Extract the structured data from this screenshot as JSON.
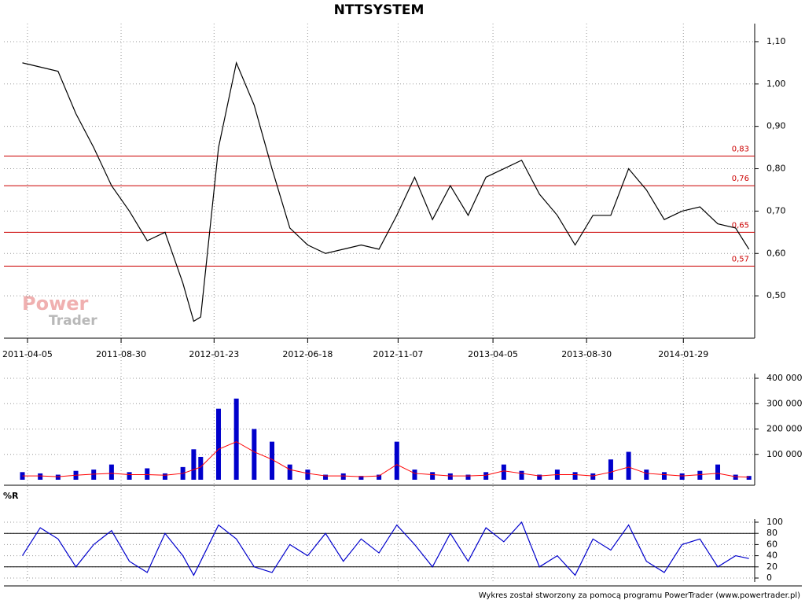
{
  "footer": "Wykres został stworzony za pomocą programu PowerTrader (www.powertrader.pl)",
  "watermark": [
    "Power",
    "Trader"
  ],
  "chart_data": [
    {
      "type": "line",
      "title": "NTTSYSTEM",
      "color": "#000000",
      "grid": true,
      "x": [
        "2011-03-28",
        "2011-04-25",
        "2011-05-23",
        "2011-06-20",
        "2011-07-18",
        "2011-08-15",
        "2011-09-12",
        "2011-10-10",
        "2011-11-07",
        "2011-12-05",
        "2011-12-22",
        "2012-01-02",
        "2012-01-30",
        "2012-02-27",
        "2012-03-26",
        "2012-04-23",
        "2012-05-21",
        "2012-06-18",
        "2012-07-16",
        "2012-08-13",
        "2012-09-10",
        "2012-10-08",
        "2012-11-05",
        "2012-12-03",
        "2012-12-31",
        "2013-01-28",
        "2013-02-25",
        "2013-03-25",
        "2013-04-22",
        "2013-05-20",
        "2013-06-17",
        "2013-07-15",
        "2013-08-12",
        "2013-09-09",
        "2013-10-07",
        "2013-11-04",
        "2013-12-02",
        "2013-12-30",
        "2014-01-27",
        "2014-02-24",
        "2014-03-24",
        "2014-04-21",
        "2014-05-12"
      ],
      "values": [
        1.05,
        1.04,
        1.03,
        0.93,
        0.85,
        0.76,
        0.7,
        0.63,
        0.65,
        0.53,
        0.44,
        0.45,
        0.85,
        1.05,
        0.95,
        0.8,
        0.66,
        0.62,
        0.6,
        0.61,
        0.62,
        0.61,
        0.69,
        0.78,
        0.68,
        0.76,
        0.69,
        0.78,
        0.8,
        0.82,
        0.74,
        0.69,
        0.62,
        0.69,
        0.69,
        0.8,
        0.75,
        0.68,
        0.7,
        0.71,
        0.67,
        0.66,
        0.61
      ],
      "xlim": [
        "2011-02-27",
        "2014-05-21"
      ],
      "xticks": [
        "2011-04-05",
        "2011-08-30",
        "2012-01-23",
        "2012-06-18",
        "2012-11-07",
        "2013-04-05",
        "2013-08-30",
        "2014-01-29"
      ],
      "ylim": [
        0.4,
        1.14
      ],
      "yticks": [
        {
          "value": 0.5,
          "label": "0,50"
        },
        {
          "value": 0.6,
          "label": "0,60"
        },
        {
          "value": 0.7,
          "label": "0,70"
        },
        {
          "value": 0.8,
          "label": "0,80"
        },
        {
          "value": 0.9,
          "label": "0,90"
        },
        {
          "value": 1.0,
          "label": "1,00"
        },
        {
          "value": 1.1,
          "label": "1,10"
        }
      ],
      "levels": [
        {
          "value": 0.83,
          "label": "0,83"
        },
        {
          "value": 0.76,
          "label": "0,76"
        },
        {
          "value": 0.65,
          "label": "0,65"
        },
        {
          "value": 0.57,
          "label": "0,57"
        }
      ],
      "level_color": "#cc0000"
    },
    {
      "type": "bar",
      "grid": true,
      "x": [
        "2011-03-28",
        "2011-04-25",
        "2011-05-23",
        "2011-06-20",
        "2011-07-18",
        "2011-08-15",
        "2011-09-12",
        "2011-10-10",
        "2011-11-07",
        "2011-12-05",
        "2011-12-22",
        "2012-01-02",
        "2012-01-30",
        "2012-02-27",
        "2012-03-26",
        "2012-04-23",
        "2012-05-21",
        "2012-06-18",
        "2012-07-16",
        "2012-08-13",
        "2012-09-10",
        "2012-10-08",
        "2012-11-05",
        "2012-12-03",
        "2012-12-31",
        "2013-01-28",
        "2013-02-25",
        "2013-03-25",
        "2013-04-22",
        "2013-05-20",
        "2013-06-17",
        "2013-07-15",
        "2013-08-12",
        "2013-09-09",
        "2013-10-07",
        "2013-11-04",
        "2013-12-02",
        "2013-12-30",
        "2014-01-27",
        "2014-02-24",
        "2014-03-24",
        "2014-04-21",
        "2014-05-12"
      ],
      "series": [
        {
          "color": "#0000cc",
          "values": [
            30000,
            25000,
            20000,
            35000,
            40000,
            60000,
            30000,
            45000,
            25000,
            50000,
            120000,
            90000,
            280000,
            320000,
            200000,
            150000,
            60000,
            40000,
            20000,
            25000,
            15000,
            20000,
            150000,
            40000,
            30000,
            25000,
            20000,
            30000,
            60000,
            35000,
            20000,
            40000,
            30000,
            25000,
            80000,
            110000,
            40000,
            30000,
            25000,
            35000,
            60000,
            20000,
            15000
          ]
        },
        {
          "color": "#ff0000",
          "values": [
            15000,
            15000,
            12000,
            18000,
            22000,
            25000,
            20000,
            20000,
            18000,
            25000,
            40000,
            50000,
            120000,
            150000,
            110000,
            80000,
            40000,
            25000,
            15000,
            15000,
            12000,
            15000,
            60000,
            25000,
            20000,
            15000,
            15000,
            18000,
            35000,
            25000,
            15000,
            20000,
            20000,
            15000,
            30000,
            50000,
            25000,
            20000,
            15000,
            20000,
            25000,
            12000,
            10000
          ]
        }
      ],
      "ylim": [
        0,
        400000
      ],
      "yticks": [
        {
          "value": 100000,
          "label": "100 000"
        },
        {
          "value": 200000,
          "label": "200 000"
        },
        {
          "value": 300000,
          "label": "300 000"
        },
        {
          "value": 400000,
          "label": "400 000"
        }
      ]
    },
    {
      "type": "line",
      "title": "%R",
      "color": "#0000cc",
      "grid": true,
      "x": [
        "2011-03-28",
        "2011-04-25",
        "2011-05-23",
        "2011-06-20",
        "2011-07-18",
        "2011-08-15",
        "2011-09-12",
        "2011-10-10",
        "2011-11-07",
        "2011-12-05",
        "2011-12-22",
        "2012-01-02",
        "2012-01-30",
        "2012-02-27",
        "2012-03-26",
        "2012-04-23",
        "2012-05-21",
        "2012-06-18",
        "2012-07-16",
        "2012-08-13",
        "2012-09-10",
        "2012-10-08",
        "2012-11-05",
        "2012-12-03",
        "2012-12-31",
        "2013-01-28",
        "2013-02-25",
        "2013-03-25",
        "2013-04-22",
        "2013-05-20",
        "2013-06-17",
        "2013-07-15",
        "2013-08-12",
        "2013-09-09",
        "2013-10-07",
        "2013-11-04",
        "2013-12-02",
        "2013-12-30",
        "2014-01-27",
        "2014-02-24",
        "2014-03-24",
        "2014-04-21",
        "2014-05-12"
      ],
      "values": [
        40,
        90,
        70,
        20,
        60,
        85,
        30,
        10,
        80,
        40,
        5,
        30,
        95,
        70,
        20,
        10,
        60,
        40,
        80,
        30,
        70,
        45,
        95,
        60,
        20,
        80,
        30,
        90,
        65,
        100,
        20,
        40,
        5,
        70,
        50,
        95,
        30,
        10,
        60,
        70,
        20,
        40,
        35
      ],
      "ylim": [
        0,
        100
      ],
      "yticks": [
        0,
        20,
        40,
        60,
        80,
        100
      ],
      "levels": [
        20,
        80
      ],
      "level_color": "#000000"
    }
  ]
}
